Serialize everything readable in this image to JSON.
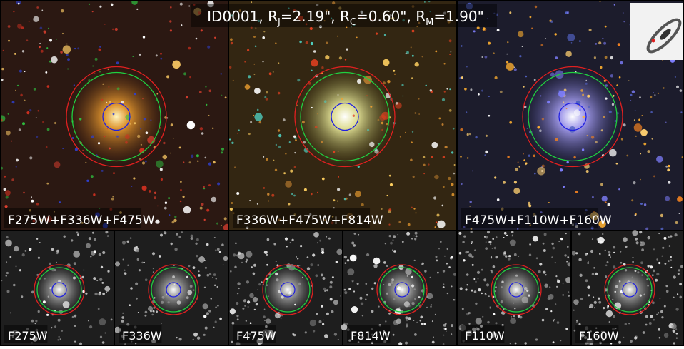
{
  "title": [
    {
      "text": "ID0001, R",
      "sub": "J"
    },
    {
      "text": "=2.19\", R",
      "sub": "C"
    },
    {
      "text": "=0.60\", R",
      "sub": "M"
    },
    {
      "text": "=1.90\""
    }
  ],
  "color_panels": [
    {
      "label": "F275W+F336W+F475W"
    },
    {
      "label": "F336W+F475W+F814W"
    },
    {
      "label": "F475W+F110W+F160W"
    }
  ],
  "band_panels": [
    {
      "label": "F275W"
    },
    {
      "label": "F336W"
    },
    {
      "label": "F475W"
    },
    {
      "label": "F814W"
    },
    {
      "label": "F110W"
    },
    {
      "label": "F160W"
    }
  ]
}
